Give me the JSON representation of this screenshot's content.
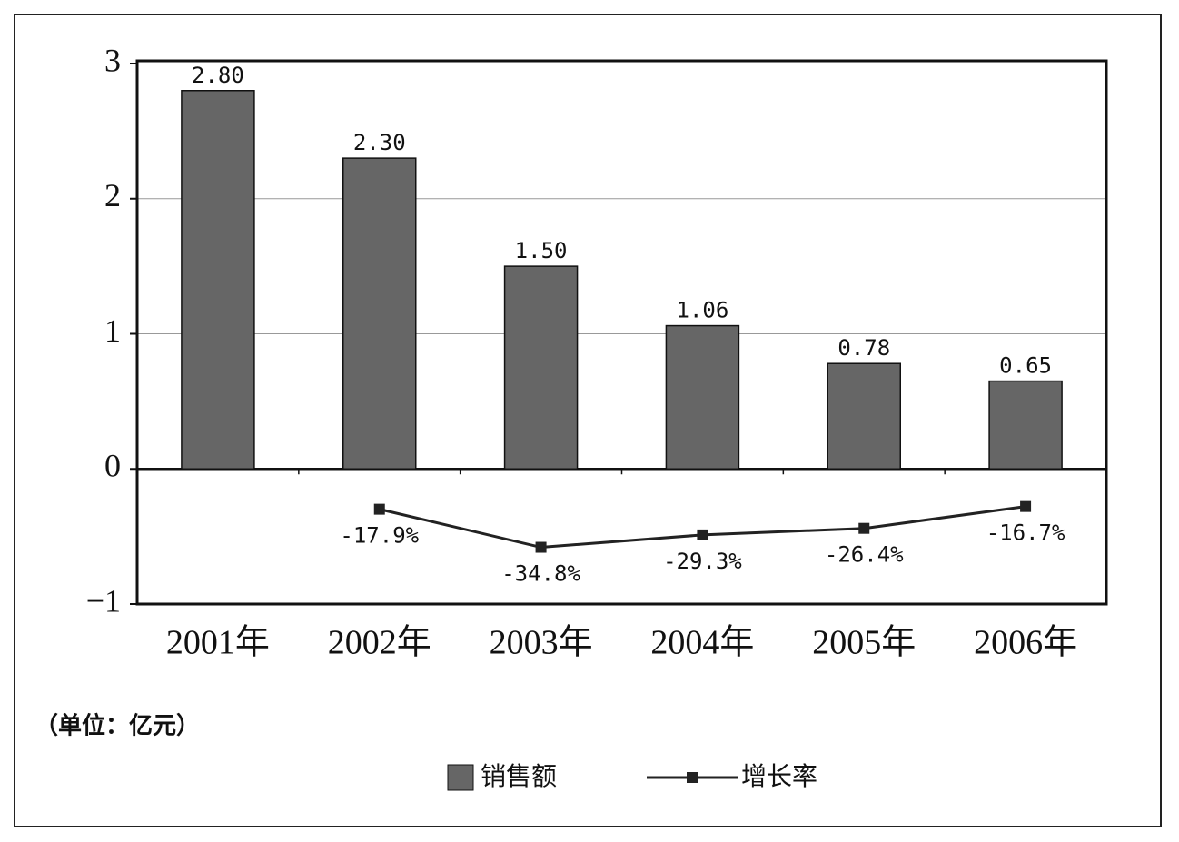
{
  "chart_data": {
    "type": "bar_line",
    "categories": [
      "2001年",
      "2002年",
      "2003年",
      "2004年",
      "2005年",
      "2006年"
    ],
    "series": [
      {
        "name": "销售额",
        "type": "bar",
        "color": "#666666",
        "values": [
          2.8,
          2.3,
          1.5,
          1.06,
          0.78,
          0.65
        ],
        "value_labels": [
          "2.80",
          "2.30",
          "1.50",
          "1.06",
          "0.78",
          "0.65"
        ]
      },
      {
        "name": "增长率",
        "type": "line",
        "axis": "y2",
        "color": "#222222",
        "values": [
          null,
          -17.9,
          -34.8,
          -29.3,
          -26.4,
          -16.7
        ],
        "value_labels": [
          null,
          "-17.9%",
          "-34.8%",
          "-29.3%",
          "-26.4%",
          "-16.7%"
        ]
      }
    ],
    "ylim": [
      -1,
      3
    ],
    "yticks": [
      {
        "value": -1,
        "label": "−1"
      },
      0,
      1,
      2,
      3
    ],
    "y2lim": [
      -60,
      180
    ],
    "grid": true,
    "annotation": "（单位：亿元）"
  }
}
